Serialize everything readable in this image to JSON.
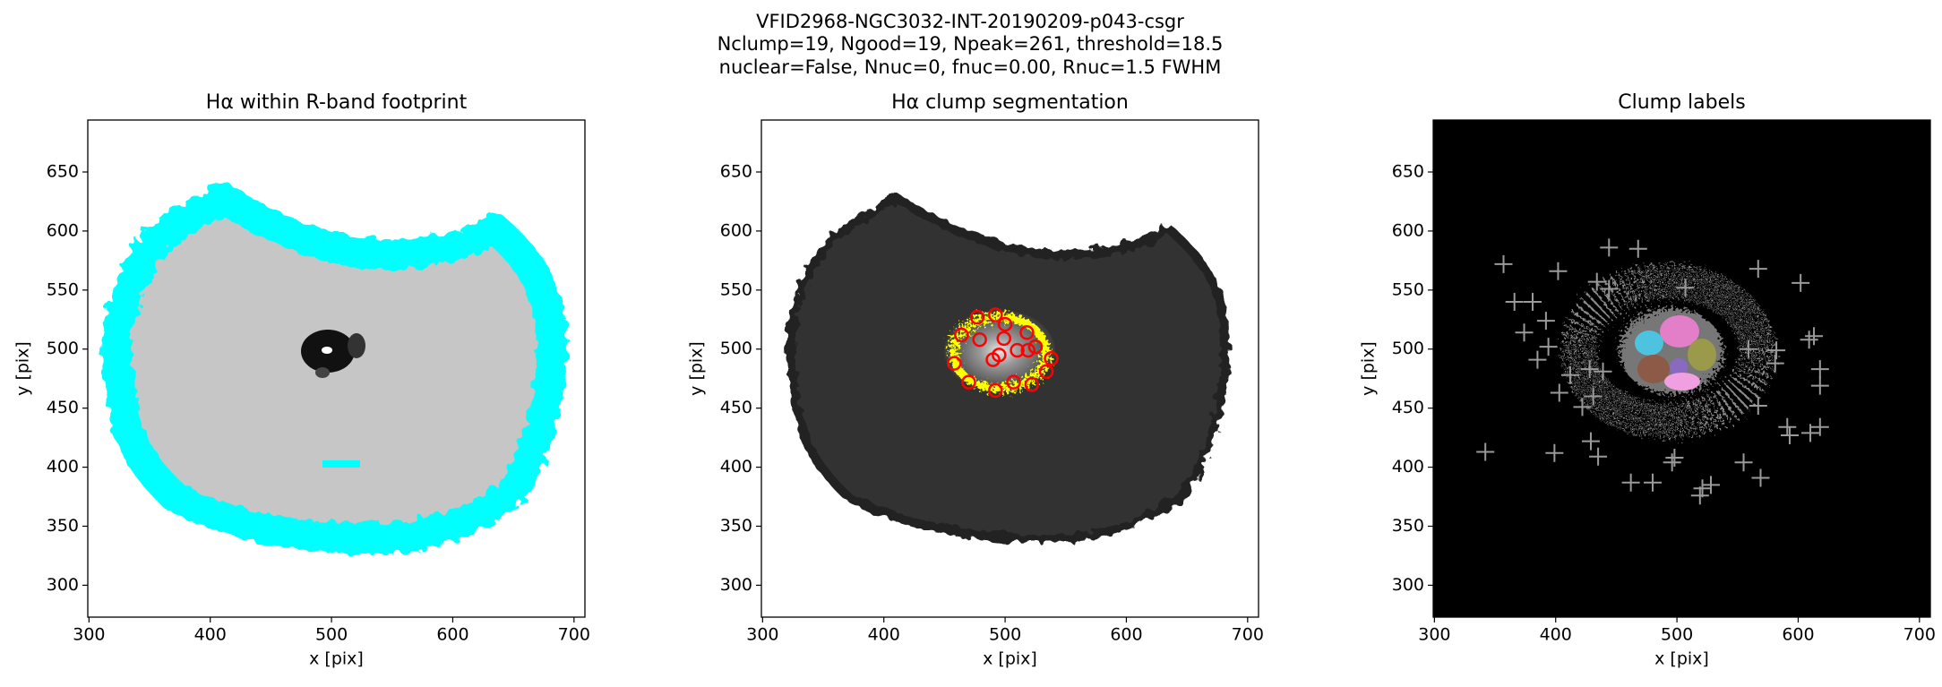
{
  "figure": {
    "title_lines": [
      "VFID2968-NGC3032-INT-20190209-p043-csgr",
      "Nclump=19, Ngood=19, Npeak=261, threshold=18.5",
      "nuclear=False, Nnuc=0, fnuc=0.00, Rnuc=1.5 FWHM"
    ]
  },
  "chart_data": [
    {
      "type": "image",
      "title": "Hα within R-band footprint",
      "xlabel": "x [pix]",
      "ylabel": "y [pix]",
      "xlim": [
        299,
        709
      ],
      "ylim": [
        273,
        694
      ],
      "xticks": [
        300,
        400,
        500,
        600,
        700
      ],
      "yticks": [
        300,
        350,
        400,
        450,
        500,
        550,
        600,
        650
      ]
    },
    {
      "type": "scatter",
      "title": "Hα clump segmentation",
      "xlabel": "x [pix]",
      "ylabel": "y [pix]",
      "xlim": [
        299,
        709
      ],
      "ylim": [
        273,
        694
      ],
      "xticks": [
        300,
        400,
        500,
        600,
        700
      ],
      "yticks": [
        300,
        350,
        400,
        450,
        500,
        550,
        600,
        650
      ],
      "markers": {
        "shape": "circle",
        "color": "#ff0000",
        "x": [
          464,
          477,
          492,
          500,
          518,
          525,
          538,
          534,
          522,
          507,
          492,
          470,
          458,
          479,
          499,
          510,
          495,
          490,
          519
        ],
        "y": [
          512,
          527,
          529,
          521,
          514,
          502,
          492,
          481,
          470,
          472,
          465,
          472,
          488,
          508,
          509,
          499,
          495,
          491,
          499
        ]
      }
    },
    {
      "type": "scatter",
      "title": "Clump labels",
      "xlabel": "x [pix]",
      "ylabel": "y [pix]",
      "xlim": [
        299,
        709
      ],
      "ylim": [
        273,
        694
      ],
      "xticks": [
        300,
        400,
        500,
        600,
        700
      ],
      "yticks": [
        300,
        350,
        400,
        450,
        500,
        550,
        600,
        650
      ],
      "markers": {
        "shape": "cross",
        "color": "#9a9a9a",
        "x": [
          357,
          402,
          366,
          381,
          374,
          392,
          394,
          385,
          412,
          403,
          428,
          439,
          422,
          431,
          342,
          399,
          429,
          435,
          462,
          480,
          496,
          498,
          521,
          519,
          528,
          555,
          569,
          567,
          581,
          609,
          602,
          567,
          559,
          582,
          593,
          591,
          610,
          618,
          618,
          618,
          613,
          468,
          444,
          434,
          444,
          507
        ],
        "y": [
          572,
          566,
          540,
          540,
          514,
          524,
          502,
          491,
          478,
          463,
          483,
          481,
          451,
          460,
          413,
          412,
          422,
          409,
          387,
          387,
          404,
          408,
          382,
          376,
          385,
          404,
          391,
          452,
          488,
          508,
          556,
          568,
          500,
          499,
          427,
          434,
          429,
          434,
          483,
          469,
          511,
          585,
          586,
          557,
          551,
          552
        ]
      }
    }
  ]
}
